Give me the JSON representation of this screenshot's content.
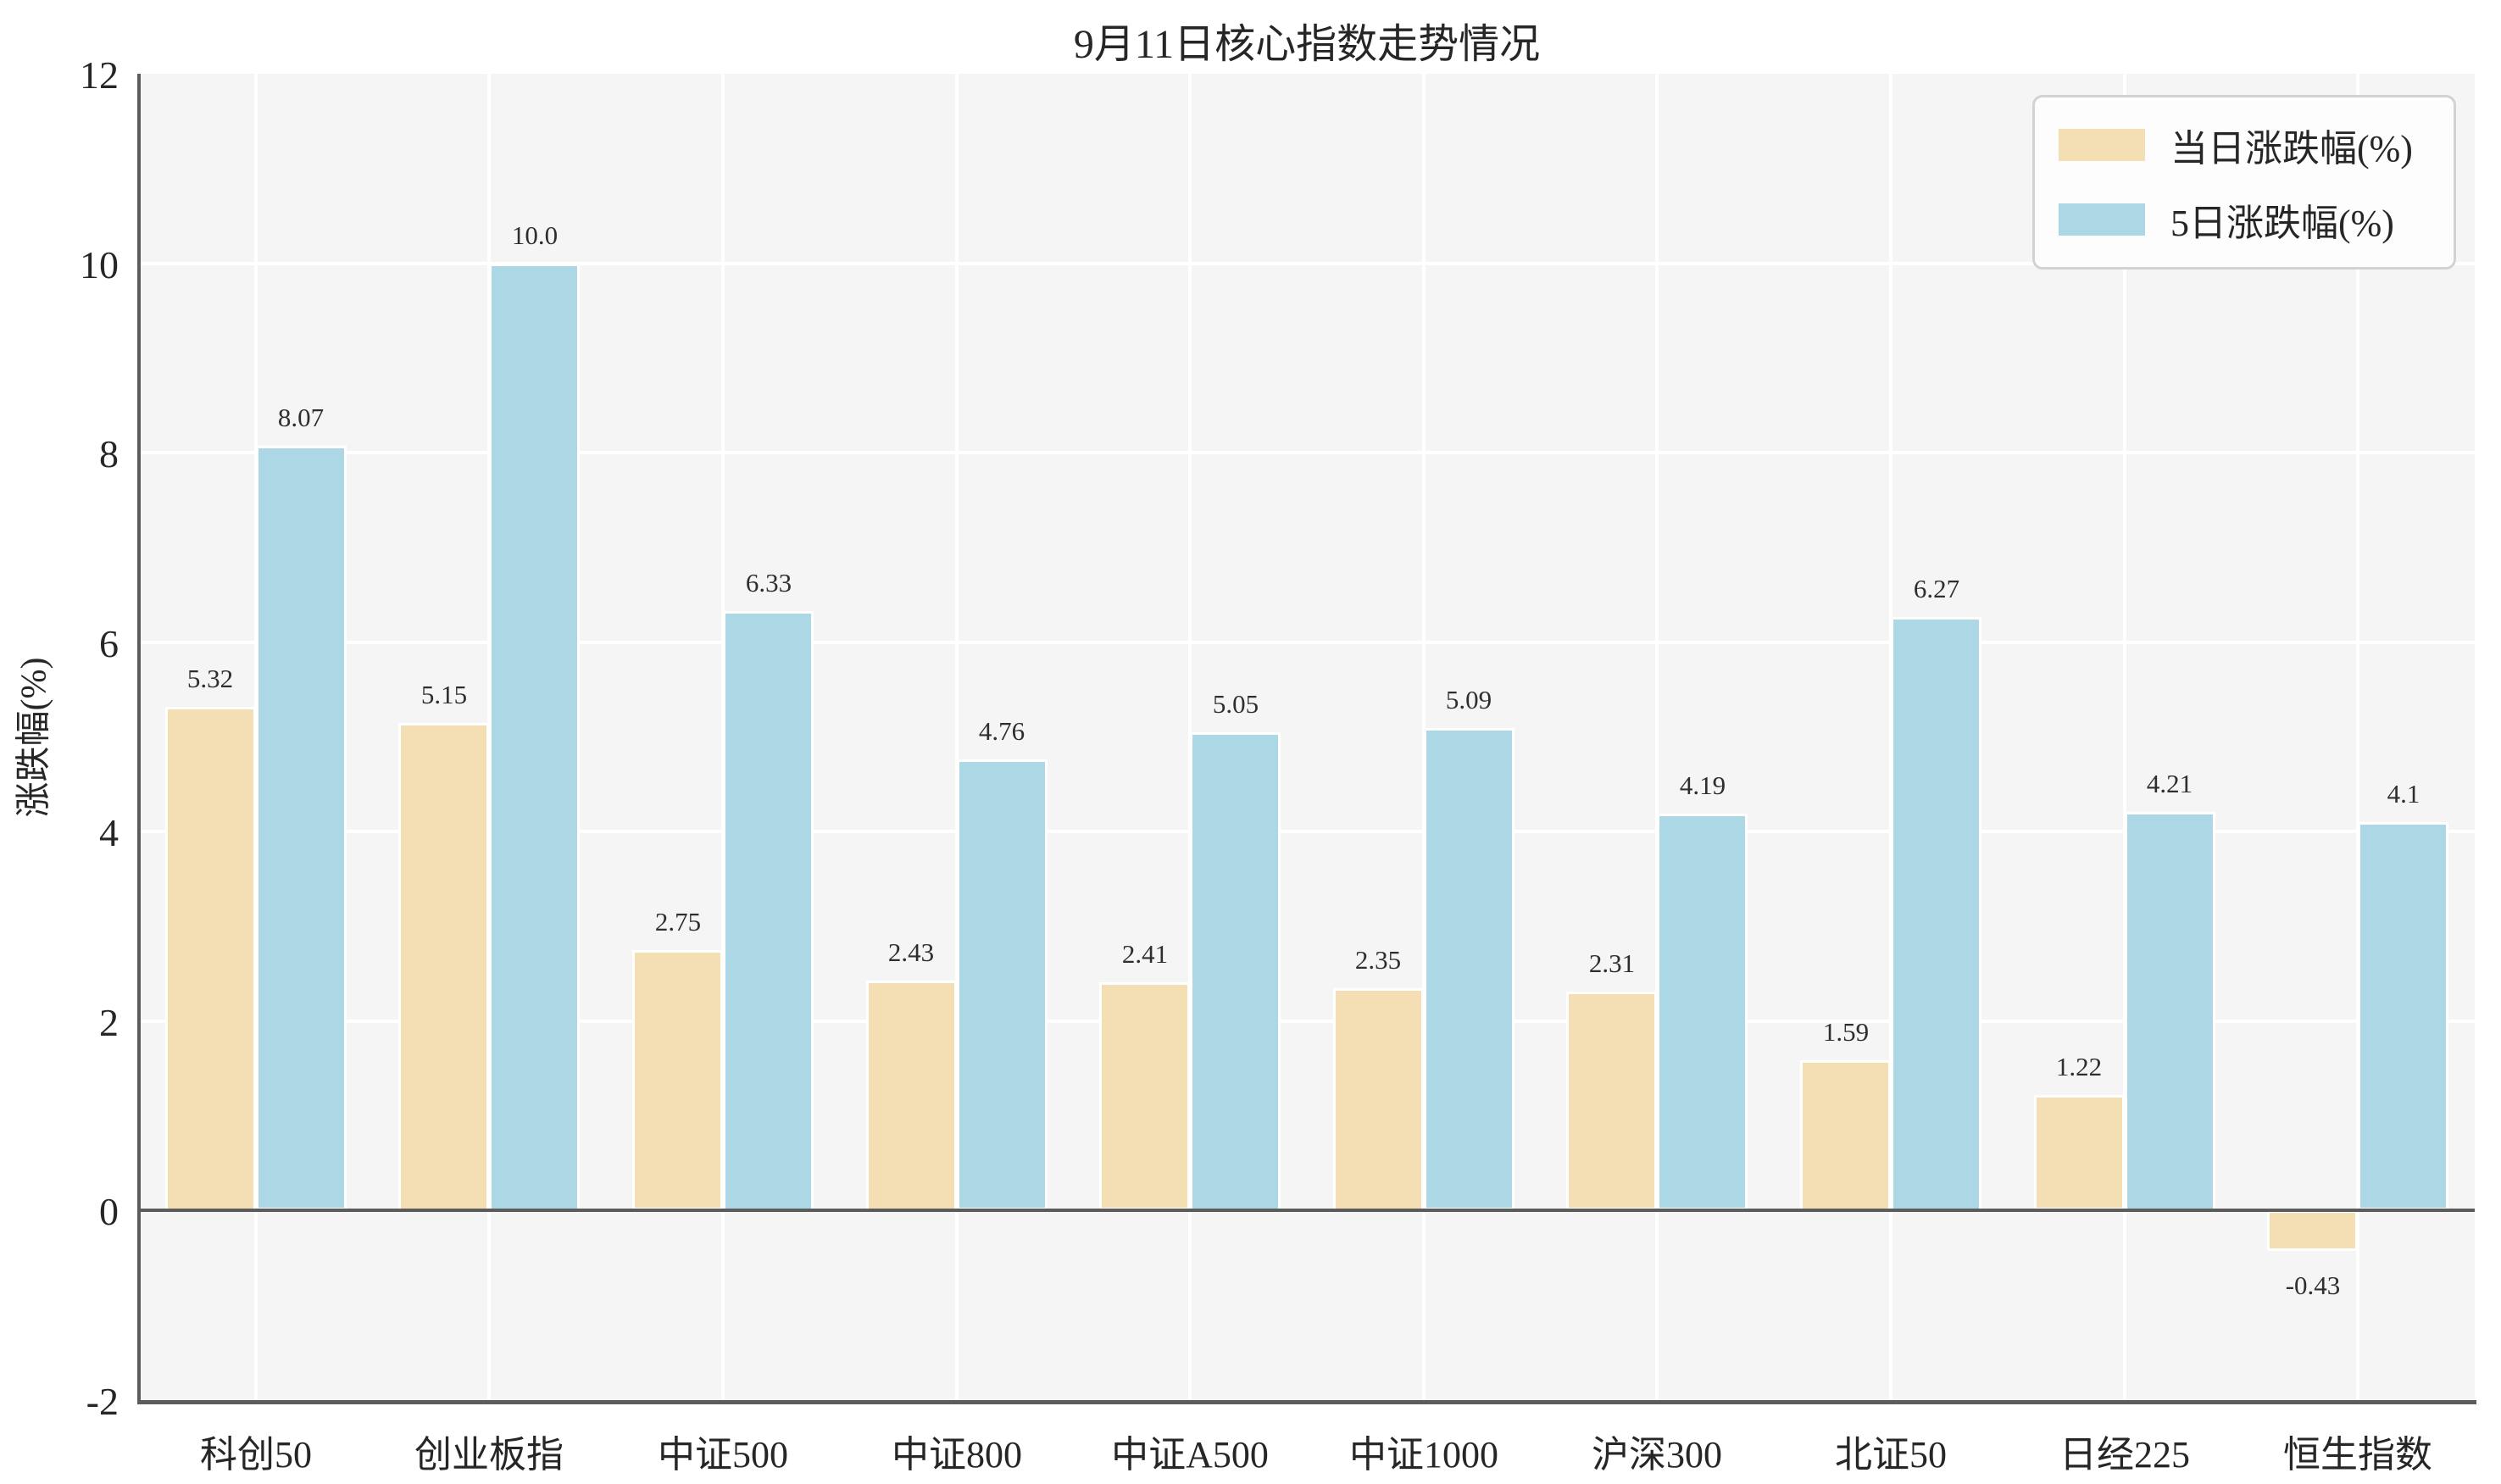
{
  "title": "9月11日核心指数走势情况",
  "colors": {
    "series_daily": "#f3dfb3",
    "series_5day": "#acd8e6",
    "plot_background": "#f5f5f5",
    "gridline": "#ffffff",
    "axis_line": "#5c5c5c",
    "text": "#262626"
  },
  "chart_data": {
    "type": "bar",
    "title": "9月11日核心指数走势情况",
    "categories": [
      "科创50",
      "创业板指",
      "中证500",
      "中证800",
      "中证A500",
      "中证1000",
      "沪深300",
      "北证50",
      "日经225",
      "恒生指数"
    ],
    "series": [
      {
        "name": "当日涨跌幅(%)",
        "color": "#f3dfb3",
        "values": [
          5.32,
          5.15,
          2.75,
          2.43,
          2.41,
          2.35,
          2.31,
          1.59,
          1.22,
          -0.43
        ],
        "labels": [
          "5.32",
          "5.15",
          "2.75",
          "2.43",
          "2.41",
          "2.35",
          "2.31",
          "1.59",
          "1.22",
          "-0.43"
        ]
      },
      {
        "name": "5日涨跌幅(%)",
        "color": "#acd8e6",
        "values": [
          8.07,
          10.0,
          6.33,
          4.76,
          5.05,
          5.09,
          4.19,
          6.27,
          4.21,
          4.1
        ],
        "labels": [
          "8.07",
          "10.0",
          "6.33",
          "4.76",
          "5.05",
          "5.09",
          "4.19",
          "6.27",
          "4.21",
          "4.1"
        ]
      }
    ],
    "xlabel": "",
    "ylabel": "涨跌幅(%)",
    "ylim": [
      -2,
      12
    ],
    "yticks": [
      -2,
      0,
      2,
      4,
      6,
      8,
      10,
      12
    ],
    "ytick_labels": [
      "-2",
      "0",
      "2",
      "4",
      "6",
      "8",
      "10",
      "12"
    ],
    "grid": true,
    "legend_position": "upper right"
  }
}
